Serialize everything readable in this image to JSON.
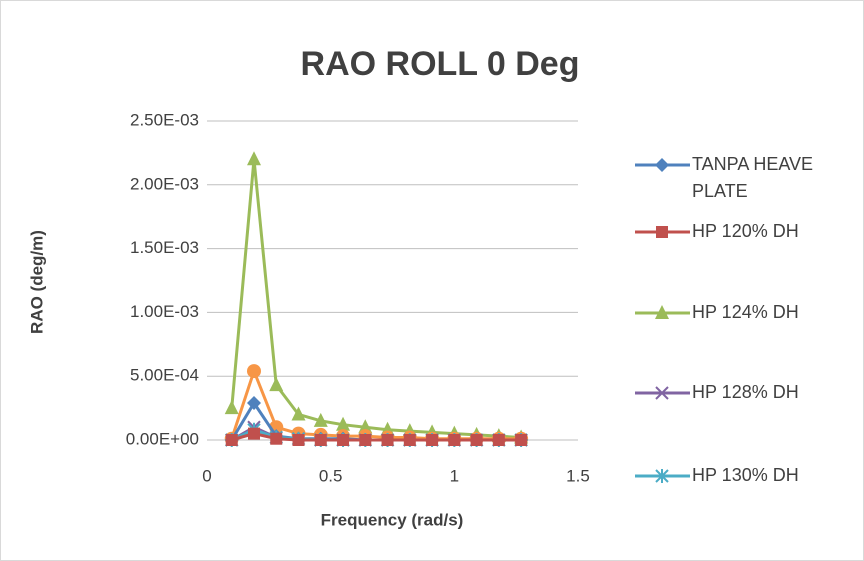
{
  "chart_data": {
    "type": "scatter",
    "title": "RAO ROLL 0 Deg",
    "x_label": "Frequency (rad/s)",
    "y_label": "RAO (deg/m)",
    "x": [
      0.1,
      0.19,
      0.28,
      0.37,
      0.46,
      0.55,
      0.64,
      0.73,
      0.82,
      0.91,
      1.0,
      1.09,
      1.18,
      1.27
    ],
    "xlim": [
      0,
      1.5
    ],
    "xticks": [
      0,
      0.5,
      1,
      1.5
    ],
    "ylim": [
      0,
      0.0025
    ],
    "yticks": [
      {
        "value": 0,
        "label": "0.00E+00"
      },
      {
        "value": 0.0005,
        "label": "5.00E-04"
      },
      {
        "value": 0.001,
        "label": "1.00E-03"
      },
      {
        "value": 0.0015,
        "label": "1.50E-03"
      },
      {
        "value": 0.002,
        "label": "2.00E-03"
      },
      {
        "value": 0.0025,
        "label": "2.50E-03"
      }
    ],
    "grid": true,
    "series": [
      {
        "name": "TANPA HEAVE PLATE",
        "color": "#4f81bd",
        "marker": "diamond",
        "values": [
          0,
          0.00029,
          3e-05,
          1e-05,
          1e-05,
          1e-05,
          0,
          0,
          0,
          0,
          0,
          0,
          0,
          0
        ]
      },
      {
        "name": "HP 120% DH",
        "color": "#c0504d",
        "marker": "square",
        "values": [
          0,
          5e-05,
          1e-05,
          0,
          0,
          0,
          0,
          0,
          0,
          0,
          0,
          0,
          0,
          0
        ]
      },
      {
        "name": "HP 124% DH",
        "color": "#9bbb59",
        "marker": "triangle",
        "values": [
          0.00025,
          0.0022,
          0.00043,
          0.0002,
          0.00015,
          0.00012,
          0.0001,
          8e-05,
          7e-05,
          6e-05,
          5e-05,
          4e-05,
          3e-05,
          2e-05
        ]
      },
      {
        "name": "HP 128% DH",
        "color": "#8064a2",
        "marker": "x",
        "values": [
          0,
          0.0001,
          2e-05,
          1e-05,
          0,
          0,
          0,
          0,
          0,
          0,
          0,
          0,
          0,
          0
        ]
      },
      {
        "name": "HP 130% DH",
        "color": "#4bacc6",
        "marker": "star",
        "values": [
          0,
          8e-05,
          2e-05,
          1e-05,
          0,
          0,
          0,
          0,
          0,
          0,
          0,
          0,
          0,
          0
        ]
      },
      {
        "color": "#f79646",
        "marker": "circle",
        "values": [
          1e-05,
          0.00054,
          0.0001,
          5e-05,
          4e-05,
          3e-05,
          3e-05,
          2e-05,
          2e-05,
          1e-05,
          1e-05,
          1e-05,
          1e-05,
          1e-05
        ]
      }
    ]
  }
}
